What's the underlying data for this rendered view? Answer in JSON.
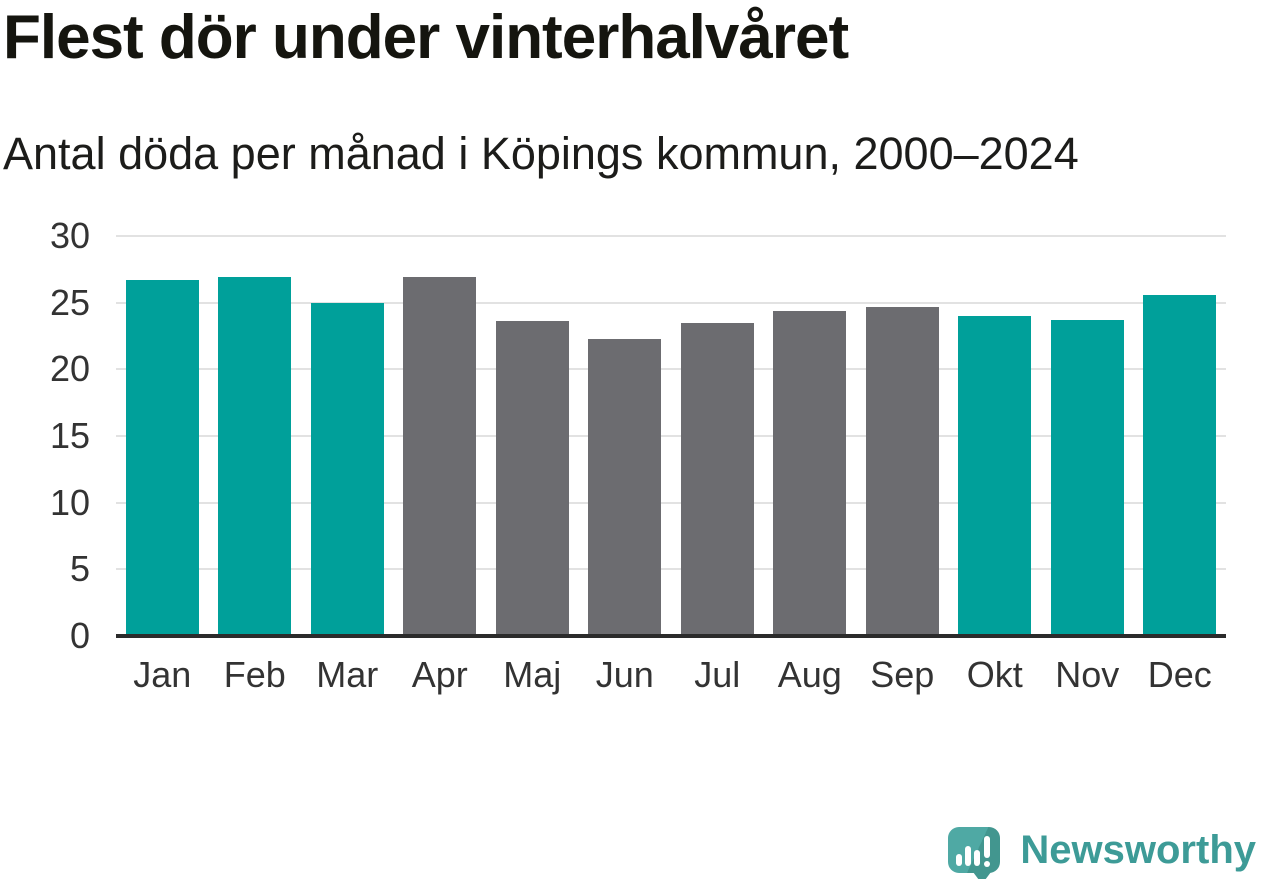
{
  "header": {
    "title": "Flest dör under vinterhalvåret",
    "subtitle": "Antal döda per månad i Köpings kommun, 2000–2024"
  },
  "chart_data": {
    "type": "bar",
    "title": "Flest dör under vinterhalvåret",
    "subtitle": "Antal döda per månad i Köpings kommun, 2000–2024",
    "categories": [
      "Jan",
      "Feb",
      "Mar",
      "Apr",
      "Maj",
      "Jun",
      "Jul",
      "Aug",
      "Sep",
      "Okt",
      "Nov",
      "Dec"
    ],
    "values": [
      26.7,
      26.9,
      25.0,
      26.9,
      23.6,
      22.3,
      23.5,
      24.4,
      24.7,
      24.0,
      23.7,
      25.6
    ],
    "bar_color_keys": [
      "winter",
      "winter",
      "winter",
      "summer",
      "summer",
      "summer",
      "summer",
      "summer",
      "summer",
      "winter",
      "winter",
      "winter"
    ],
    "colors": {
      "winter": "#00a09a",
      "summer": "#6c6c70"
    },
    "xlabel": "",
    "ylabel": "",
    "ylim": [
      0,
      30
    ],
    "yticks": [
      0,
      5,
      10,
      15,
      20,
      25,
      30
    ],
    "grid": true,
    "legend_position": "none",
    "gridline_color": "#e2e2e2",
    "axis_line_color": "#2b2b2b",
    "tick_label_color": "#333333"
  },
  "footer": {
    "brand_name": "Newsworthy",
    "logo_icon": "newsworthy-bar-chart-speech-bubble-icon",
    "brand_text_color": "#3d9b97",
    "logo_bubble_color": "#4fa9a4"
  }
}
